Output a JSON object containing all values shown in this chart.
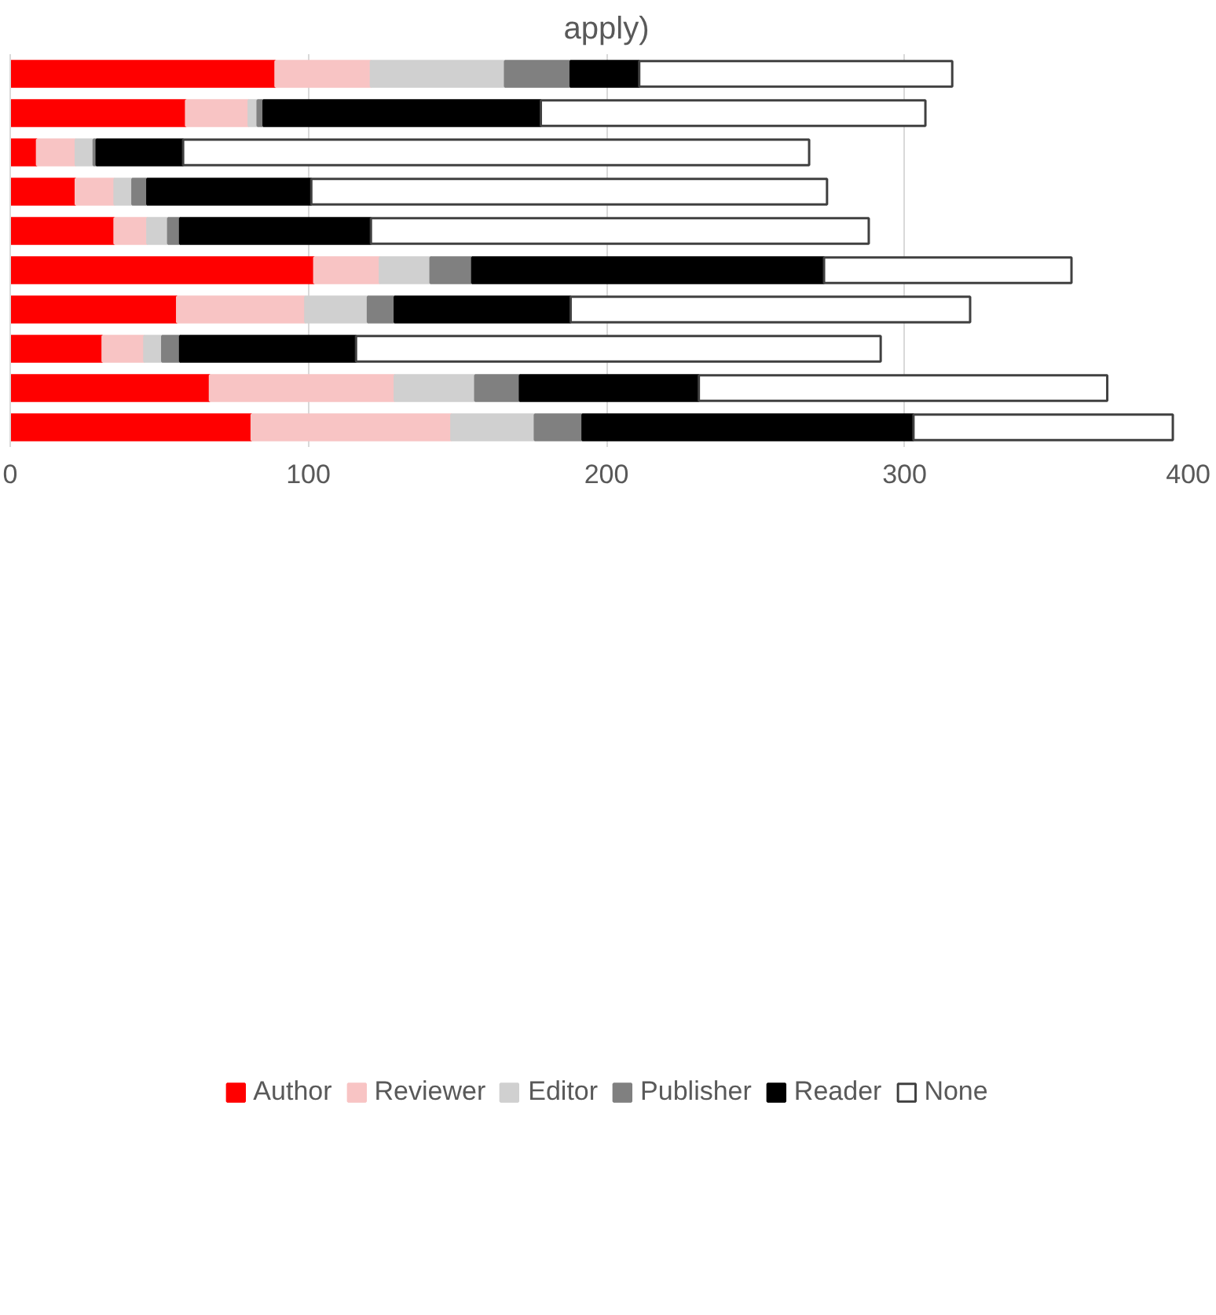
{
  "chart_data": {
    "type": "bar",
    "orientation": "horizontal",
    "stacked": true,
    "title": "apply)",
    "categories": [
      null,
      null,
      null,
      null,
      null,
      null,
      null,
      null,
      null,
      null
    ],
    "series": [
      {
        "name": "Author",
        "color": "#ff0000",
        "values": [
          89,
          59,
          9,
          22,
          35,
          102,
          56,
          31,
          67,
          81
        ]
      },
      {
        "name": "Reviewer",
        "color": "#f8c4c4",
        "values": [
          32,
          21,
          13,
          13,
          11,
          22,
          43,
          14,
          62,
          67
        ]
      },
      {
        "name": "Editor",
        "color": "#d0d0d0",
        "values": [
          45,
          3,
          6,
          6,
          7,
          17,
          21,
          6,
          27,
          28
        ]
      },
      {
        "name": "Publisher",
        "color": "#808080",
        "values": [
          22,
          2,
          1,
          5,
          4,
          14,
          9,
          6,
          15,
          16
        ]
      },
      {
        "name": "Reader",
        "color": "#000000",
        "values": [
          23,
          93,
          29,
          55,
          64,
          118,
          59,
          59,
          60,
          111
        ]
      },
      {
        "name": "None",
        "color": "#ffffff",
        "values": [
          105,
          129,
          210,
          173,
          167,
          83,
          134,
          176,
          137,
          87
        ]
      }
    ],
    "xlim": [
      0,
      400
    ],
    "xticks": [
      0,
      100,
      200,
      300,
      400
    ],
    "grid": "x",
    "legend": "bottom",
    "tick_labels": "x"
  }
}
